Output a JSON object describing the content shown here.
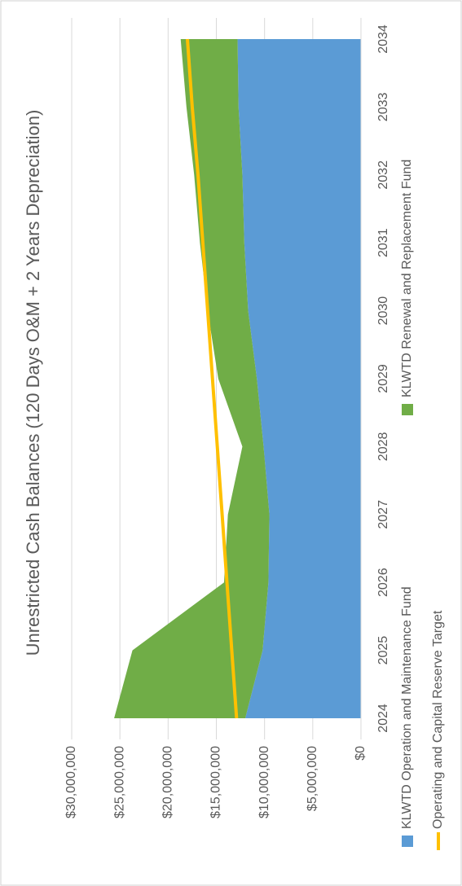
{
  "chart_data": {
    "type": "area",
    "stacked": true,
    "title": "Unrestricted Cash Balances (120 Days O&M + 2 Years Depreciation)",
    "categories": [
      "2024",
      "2025",
      "2026",
      "2027",
      "2028",
      "2029",
      "2030",
      "2031",
      "2032",
      "2033",
      "2034"
    ],
    "series": [
      {
        "name": "KLWTD Operation and Maintenance Fund",
        "color": "#5b9bd5",
        "type": "area",
        "values": [
          12000000,
          10200000,
          9600000,
          9500000,
          10100000,
          10800000,
          11700000,
          12100000,
          12300000,
          12700000,
          12800000
        ]
      },
      {
        "name": "KLWTD Renewal and Replacement Fund",
        "color": "#70ad47",
        "type": "area",
        "values": [
          13600000,
          13500000,
          4600000,
          4300000,
          2200000,
          4000000,
          4200000,
          4600000,
          5000000,
          5400000,
          5900000
        ]
      },
      {
        "name": "Operating and Capital Reserve Target",
        "color": "#ffc000",
        "type": "line",
        "values": [
          12900000,
          13400000,
          13900000,
          14400000,
          14900000,
          15400000,
          15900000,
          16400000,
          16900000,
          17500000,
          18000000
        ]
      }
    ],
    "ylim": [
      0,
      30000000
    ],
    "yticks": [
      {
        "value": 0,
        "label": "$0"
      },
      {
        "value": 5000000,
        "label": "$5,000,000"
      },
      {
        "value": 10000000,
        "label": "$10,000,000"
      },
      {
        "value": 15000000,
        "label": "$15,000,000"
      },
      {
        "value": 20000000,
        "label": "$20,000,000"
      },
      {
        "value": 25000000,
        "label": "$25,000,000"
      },
      {
        "value": 30000000,
        "label": "$30,000,000"
      }
    ],
    "grid": true
  }
}
